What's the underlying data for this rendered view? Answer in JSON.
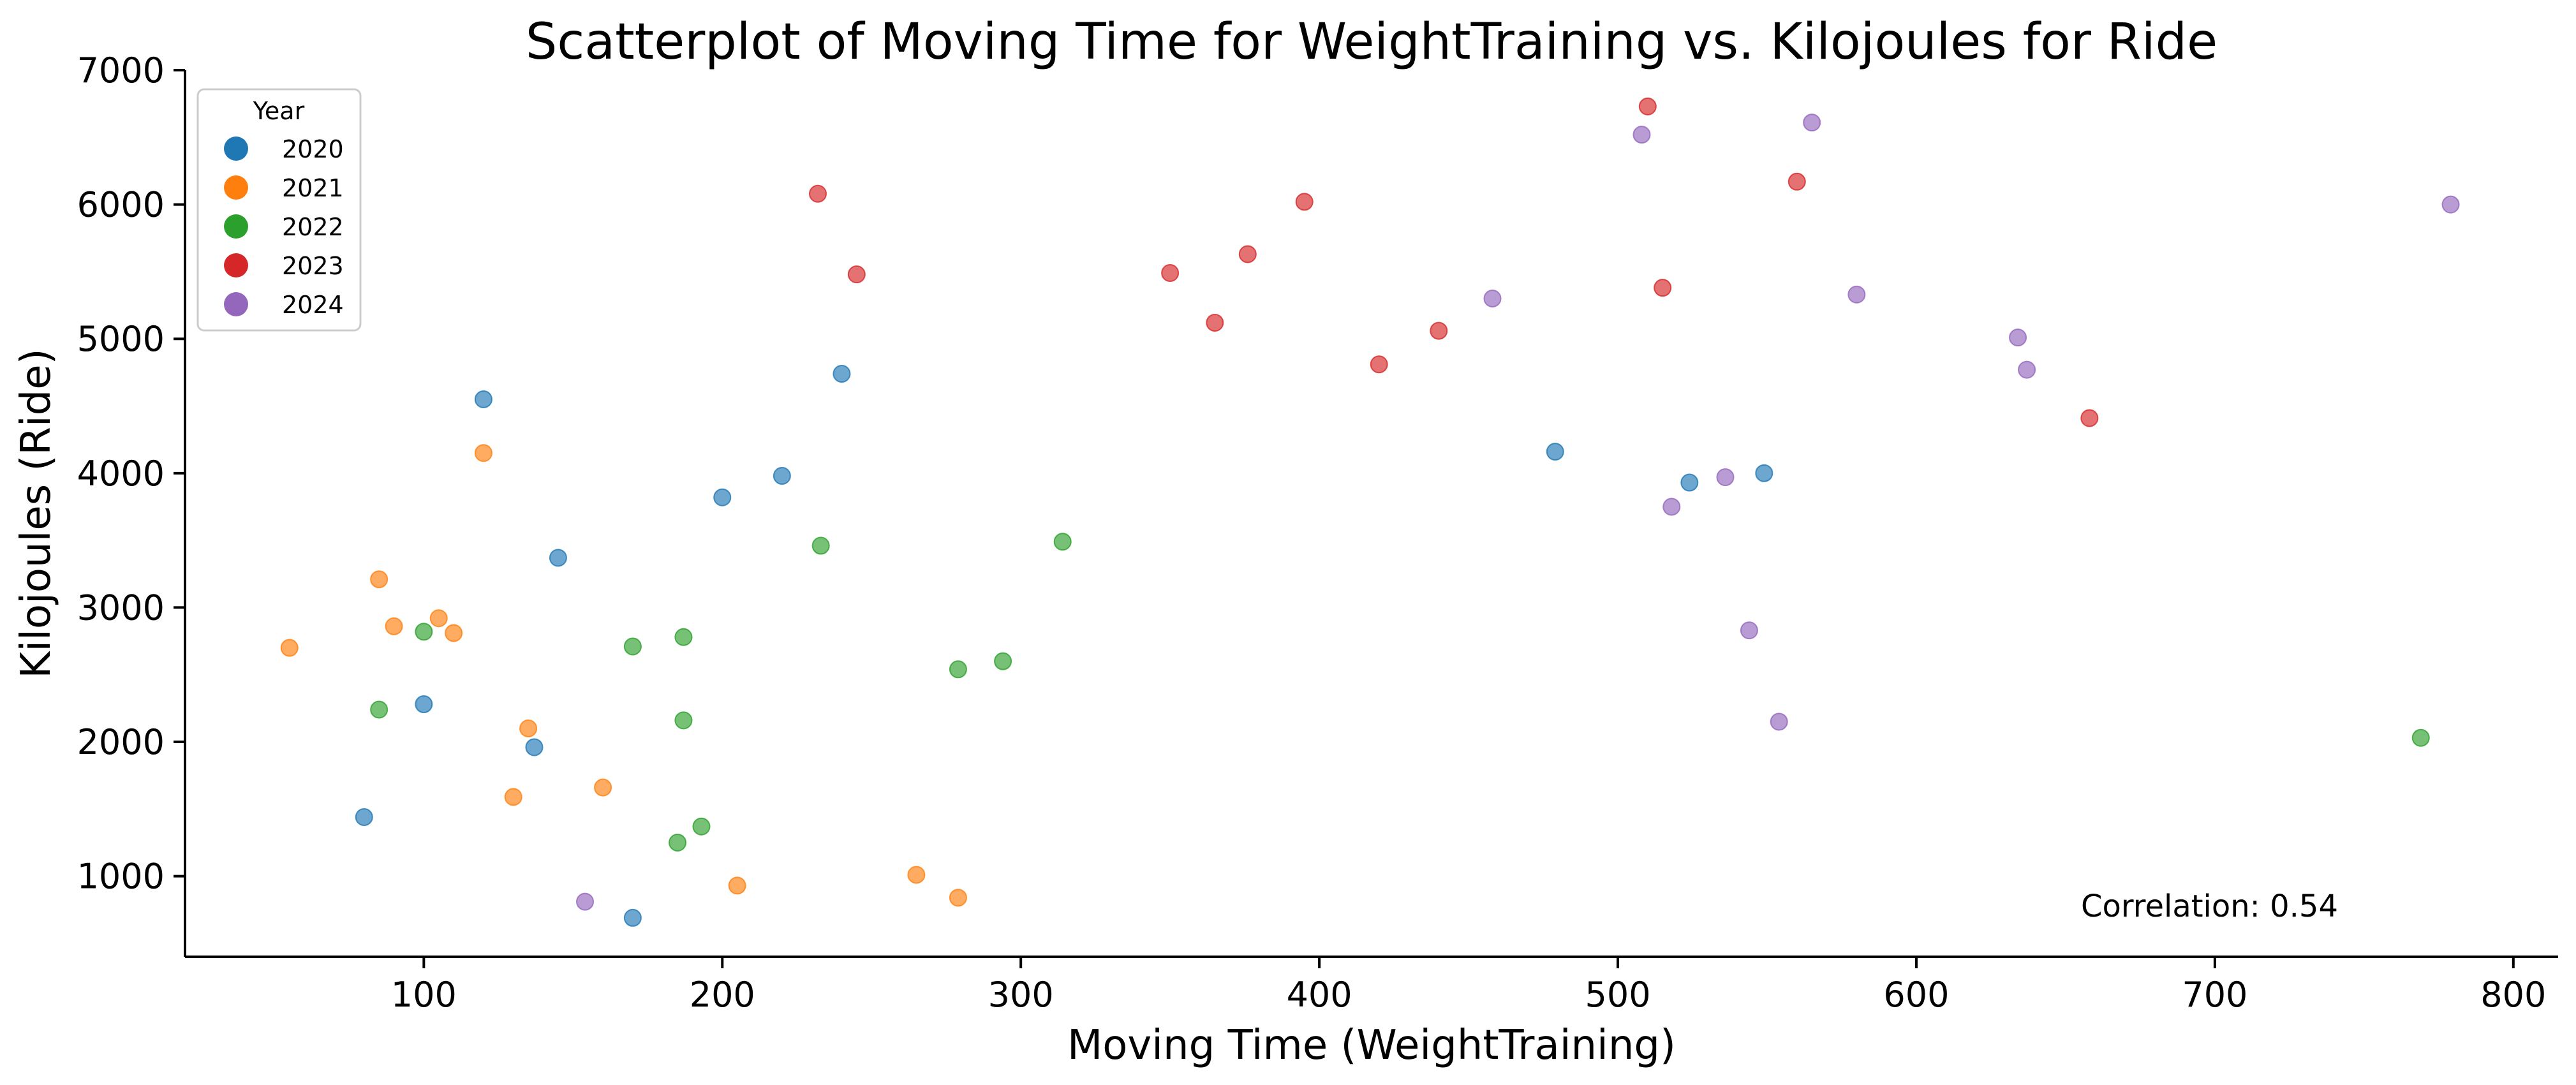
{
  "chart_data": {
    "type": "scatter",
    "title": "Scatterplot of Moving Time for WeightTraining vs. Kilojoules for Ride",
    "xlabel": "Moving Time (WeightTraining)",
    "ylabel": "Kilojoules (Ride)",
    "xlim": [
      20,
      815
    ],
    "ylim": [
      400,
      7000
    ],
    "xticks": [
      100,
      200,
      300,
      400,
      500,
      600,
      700,
      800
    ],
    "yticks": [
      1000,
      2000,
      3000,
      4000,
      5000,
      6000,
      7000
    ],
    "grid": false,
    "legend": {
      "title": "Year",
      "placement": "top-left"
    },
    "annotation": "Correlation: 0.54",
    "series": [
      {
        "name": "2020",
        "color": "#1f77b4",
        "points": [
          [
            80,
            1440
          ],
          [
            100,
            2280
          ],
          [
            120,
            4550
          ],
          [
            137,
            1960
          ],
          [
            145,
            3370
          ],
          [
            170,
            690
          ],
          [
            200,
            3820
          ],
          [
            220,
            3980
          ],
          [
            240,
            4740
          ],
          [
            479,
            4160
          ],
          [
            524,
            3930
          ],
          [
            549,
            4000
          ]
        ]
      },
      {
        "name": "2021",
        "color": "#ff7f0e",
        "points": [
          [
            55,
            2700
          ],
          [
            85,
            3210
          ],
          [
            90,
            2860
          ],
          [
            105,
            2920
          ],
          [
            110,
            2810
          ],
          [
            120,
            4150
          ],
          [
            130,
            1590
          ],
          [
            135,
            2100
          ],
          [
            160,
            1660
          ],
          [
            205,
            930
          ],
          [
            265,
            1010
          ],
          [
            279,
            840
          ]
        ]
      },
      {
        "name": "2022",
        "color": "#2ca02c",
        "points": [
          [
            85,
            2240
          ],
          [
            100,
            2820
          ],
          [
            170,
            2710
          ],
          [
            185,
            1250
          ],
          [
            187,
            2780
          ],
          [
            187,
            2160
          ],
          [
            193,
            1370
          ],
          [
            233,
            3460
          ],
          [
            279,
            2540
          ],
          [
            294,
            2600
          ],
          [
            314,
            3490
          ],
          [
            769,
            2030
          ]
        ]
      },
      {
        "name": "2023",
        "color": "#d62728",
        "points": [
          [
            232,
            6080
          ],
          [
            245,
            5480
          ],
          [
            350,
            5490
          ],
          [
            365,
            5120
          ],
          [
            376,
            5630
          ],
          [
            395,
            6020
          ],
          [
            420,
            4810
          ],
          [
            440,
            5060
          ],
          [
            510,
            6730
          ],
          [
            515,
            5380
          ],
          [
            560,
            6170
          ],
          [
            658,
            4410
          ]
        ]
      },
      {
        "name": "2024",
        "color": "#9467bd",
        "points": [
          [
            154,
            810
          ],
          [
            458,
            5300
          ],
          [
            508,
            6520
          ],
          [
            518,
            3750
          ],
          [
            536,
            3970
          ],
          [
            544,
            2830
          ],
          [
            554,
            2150
          ],
          [
            565,
            6610
          ],
          [
            580,
            5330
          ],
          [
            634,
            5010
          ],
          [
            637,
            4770
          ],
          [
            779,
            6000
          ]
        ]
      }
    ]
  }
}
